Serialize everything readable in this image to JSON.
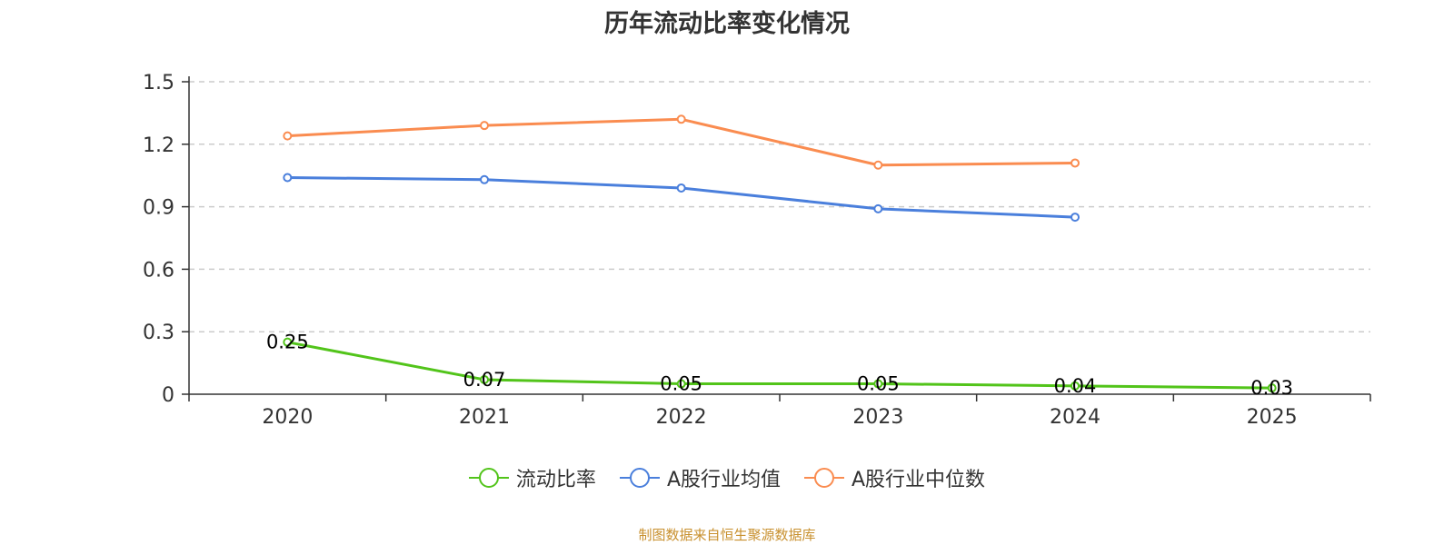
{
  "chart_data": {
    "type": "line",
    "title": "历年流动比率变化情况",
    "categories": [
      "2020",
      "2021",
      "2022",
      "2023",
      "2024",
      "2025"
    ],
    "ylim": [
      0,
      1.5
    ],
    "yticks": [
      0,
      0.3,
      0.6,
      0.9,
      1.2,
      1.5
    ],
    "ytick_labels": [
      "0",
      "0.3",
      "0.6",
      "0.9",
      "1.2",
      "1.5"
    ],
    "grid": true,
    "legend_position": "bottom",
    "series": [
      {
        "name": "流动比率",
        "color": "#52c41a",
        "values": [
          0.25,
          0.07,
          0.05,
          0.05,
          0.04,
          0.03
        ],
        "labels": [
          "0.25",
          "0.07",
          "0.05",
          "0.05",
          "0.04",
          "0.03"
        ]
      },
      {
        "name": "A股行业均值",
        "color": "#4a7fdc",
        "values": [
          1.04,
          1.03,
          0.99,
          0.89,
          0.85,
          null
        ]
      },
      {
        "name": "A股行业中位数",
        "color": "#fa8c50",
        "values": [
          1.24,
          1.29,
          1.32,
          1.1,
          1.11,
          null
        ]
      }
    ]
  },
  "source": "制图数据来自恒生聚源数据库"
}
